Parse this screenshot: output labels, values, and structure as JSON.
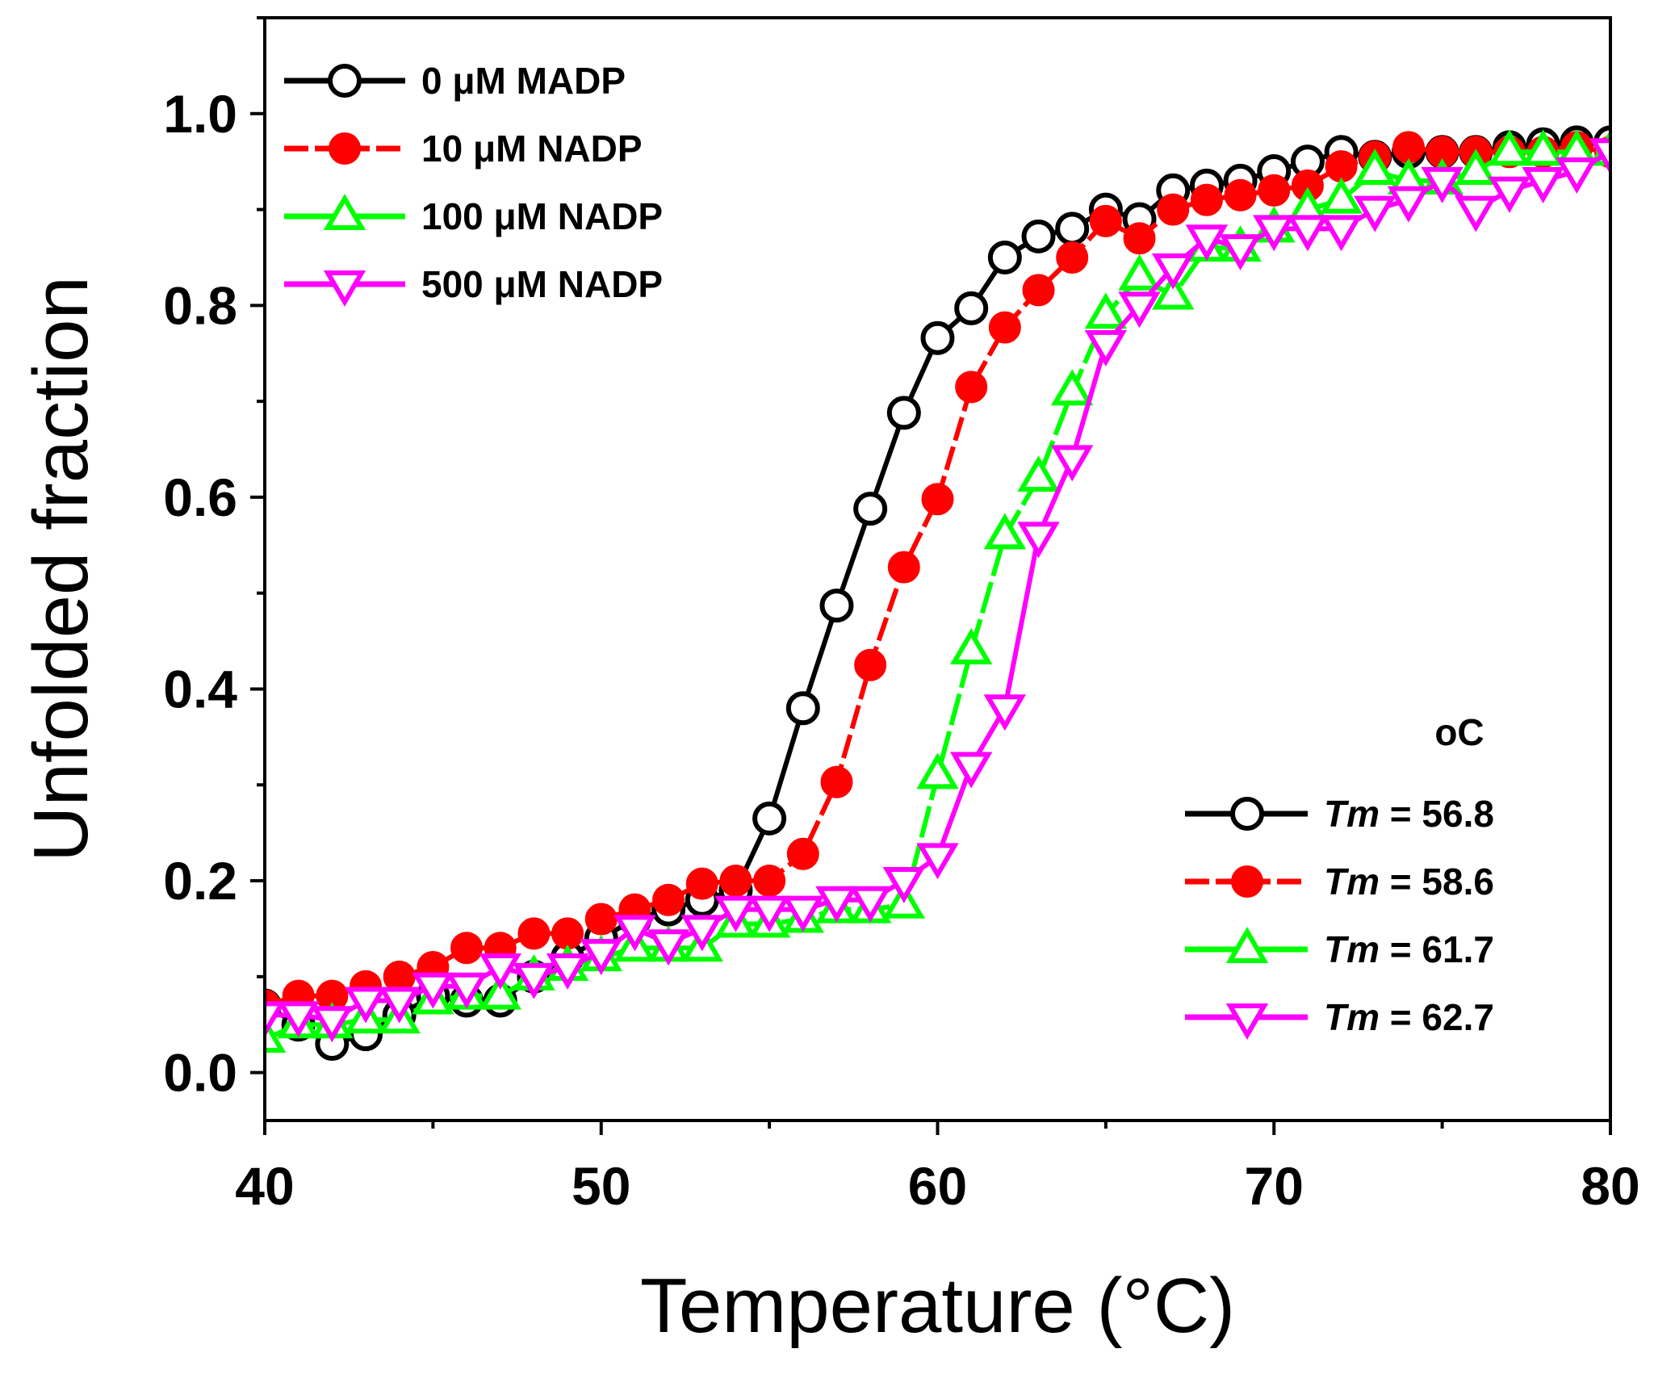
{
  "chart_data": {
    "type": "line",
    "title": "",
    "xlabel": "Temperature (°C)",
    "ylabel": "Unfolded fraction",
    "xlim": [
      40,
      80
    ],
    "ylim": [
      -0.05,
      1.1
    ],
    "xticks": [
      "40",
      "50",
      "60",
      "70",
      "80"
    ],
    "yticks": [
      "0.0",
      "0.2",
      "0.4",
      "0.6",
      "0.8",
      "1.0"
    ],
    "series": [
      {
        "name": "0 μM MADP",
        "color": "#000000",
        "marker": "circle-open",
        "x": [
          40,
          41,
          42,
          43,
          44,
          45,
          46,
          47,
          48,
          49,
          50,
          51,
          52,
          53,
          54,
          55,
          56,
          57,
          58,
          59,
          60,
          61,
          62,
          63,
          64,
          65,
          66,
          67,
          68,
          69,
          70,
          71,
          72,
          73,
          74,
          75,
          76,
          77,
          78,
          79,
          80
        ],
        "values": [
          0.07,
          0.05,
          0.03,
          0.04,
          0.06,
          0.08,
          0.075,
          0.075,
          0.1,
          0.12,
          0.14,
          0.16,
          0.17,
          0.18,
          0.19,
          0.265,
          0.38,
          0.487,
          0.588,
          0.688,
          0.766,
          0.797,
          0.85,
          0.872,
          0.88,
          0.9,
          0.89,
          0.92,
          0.925,
          0.93,
          0.94,
          0.95,
          0.96,
          0.955,
          0.96,
          0.96,
          0.96,
          0.965,
          0.968,
          0.97,
          0.97
        ]
      },
      {
        "name": "10 μM NADP",
        "color": "#ff0000",
        "marker": "circle-filled",
        "x": [
          40,
          41,
          42,
          43,
          44,
          45,
          46,
          47,
          48,
          49,
          50,
          51,
          52,
          53,
          54,
          55,
          56,
          57,
          58,
          59,
          60,
          61,
          62,
          63,
          64,
          65,
          66,
          67,
          68,
          69,
          70,
          71,
          72,
          73,
          74,
          75,
          76,
          77,
          78,
          79,
          80
        ],
        "values": [
          0.07,
          0.08,
          0.08,
          0.09,
          0.1,
          0.11,
          0.13,
          0.13,
          0.145,
          0.145,
          0.16,
          0.17,
          0.18,
          0.197,
          0.2,
          0.2,
          0.228,
          0.303,
          0.425,
          0.527,
          0.598,
          0.715,
          0.777,
          0.816,
          0.85,
          0.888,
          0.87,
          0.9,
          0.91,
          0.915,
          0.92,
          0.925,
          0.945,
          0.955,
          0.965,
          0.96,
          0.96,
          0.96,
          0.96,
          0.965,
          0.96
        ]
      },
      {
        "name": "100 μM NADP",
        "color": "#00ff00",
        "marker": "triangle-up-open",
        "x": [
          40,
          41,
          42,
          43,
          44,
          45,
          46,
          47,
          48,
          49,
          50,
          51,
          52,
          53,
          54,
          55,
          56,
          57,
          58,
          59,
          60,
          61,
          62,
          63,
          64,
          65,
          66,
          67,
          68,
          69,
          70,
          71,
          72,
          73,
          74,
          75,
          76,
          77,
          78,
          79,
          80
        ],
        "values": [
          0.035,
          0.05,
          0.05,
          0.055,
          0.055,
          0.075,
          0.08,
          0.08,
          0.1,
          0.11,
          0.12,
          0.13,
          0.13,
          0.13,
          0.155,
          0.155,
          0.16,
          0.17,
          0.17,
          0.175,
          0.31,
          0.44,
          0.56,
          0.62,
          0.71,
          0.79,
          0.83,
          0.81,
          0.86,
          0.86,
          0.88,
          0.9,
          0.91,
          0.94,
          0.93,
          0.93,
          0.94,
          0.96,
          0.96,
          0.96,
          0.96
        ]
      },
      {
        "name": "500 μM NADP",
        "color": "#ff00ff",
        "marker": "triangle-down-open",
        "x": [
          40,
          41,
          42,
          43,
          44,
          45,
          46,
          47,
          48,
          49,
          50,
          51,
          52,
          53,
          54,
          55,
          56,
          57,
          58,
          59,
          60,
          61,
          62,
          63,
          64,
          65,
          66,
          67,
          68,
          69,
          70,
          71,
          72,
          73,
          74,
          75,
          76,
          77,
          78,
          79,
          80
        ],
        "values": [
          0.06,
          0.06,
          0.055,
          0.075,
          0.075,
          0.09,
          0.09,
          0.11,
          0.1,
          0.11,
          0.125,
          0.15,
          0.135,
          0.15,
          0.17,
          0.17,
          0.17,
          0.18,
          0.18,
          0.2,
          0.225,
          0.32,
          0.38,
          0.56,
          0.64,
          0.76,
          0.8,
          0.84,
          0.87,
          0.86,
          0.88,
          0.88,
          0.88,
          0.9,
          0.91,
          0.93,
          0.9,
          0.92,
          0.93,
          0.94,
          0.96
        ]
      }
    ],
    "legend_top": {
      "placement": "top-left",
      "entries": [
        "0 μM MADP",
        "10 μM NADP",
        "100 μM NADP",
        "500 μM NADP"
      ]
    },
    "legend_tm": {
      "placement": "bottom-right",
      "unit": "oC",
      "entries": [
        {
          "label": "Tm",
          "text": " = 56.8"
        },
        {
          "label": "Tm",
          "text": " = 58.6"
        },
        {
          "label": "Tm",
          "text": " = 61.7"
        },
        {
          "label": "Tm",
          "text": " = 62.7"
        }
      ]
    }
  }
}
